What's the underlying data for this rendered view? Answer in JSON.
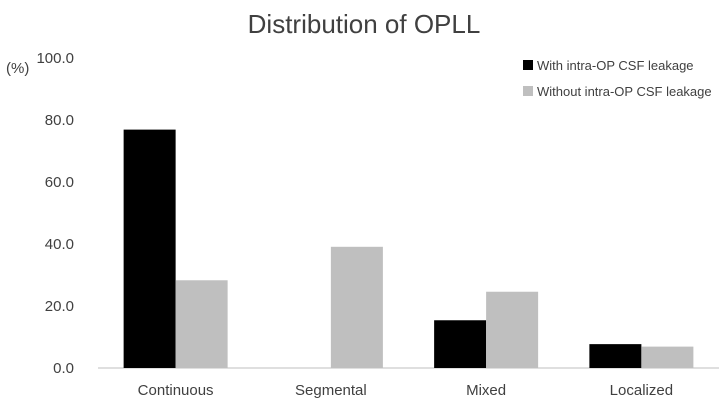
{
  "chart_data": {
    "type": "bar",
    "title": "Distribution of OPLL",
    "ylabel": "(%)",
    "xlabel": "",
    "ylim": [
      0,
      100
    ],
    "yticks": [
      "0.0",
      "20.0",
      "40.0",
      "60.0",
      "80.0",
      "100.0"
    ],
    "categories": [
      "Continuous",
      "Segmental",
      "Mixed",
      "Localized"
    ],
    "series": [
      {
        "name": "With intra-OP CSF leakage",
        "values": [
          76.9,
          0,
          15.4,
          7.7
        ],
        "color": "#000000"
      },
      {
        "name": "Without intra-OP CSF leakage",
        "values": [
          28.3,
          39.1,
          24.6,
          6.9
        ],
        "color": "#bfbfbf"
      }
    ],
    "grid": false,
    "legend_position": "top-right"
  }
}
